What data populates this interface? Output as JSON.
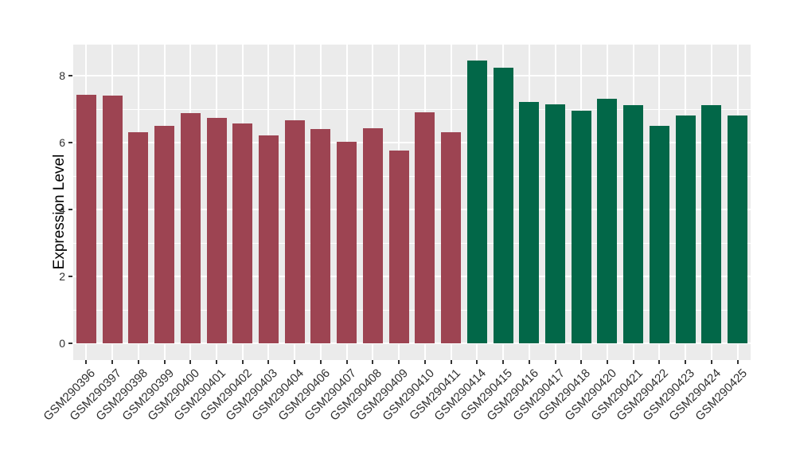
{
  "chart_data": {
    "type": "bar",
    "title": "",
    "xlabel": "",
    "ylabel": "Expression Level",
    "ylim": [
      0,
      8.9
    ],
    "yticks": [
      0,
      2,
      4,
      6,
      8
    ],
    "minor_yticks": [
      1,
      3,
      5,
      7
    ],
    "grid": "white major/minor horizontal lines and vertical lines at category centers on gray panel (ggplot style), drawn behind bars",
    "legend_position": "none",
    "categories": [
      "GSM290396",
      "GSM290397",
      "GSM290398",
      "GSM290399",
      "GSM290400",
      "GSM290401",
      "GSM290402",
      "GSM290403",
      "GSM290404",
      "GSM290406",
      "GSM290407",
      "GSM290408",
      "GSM290409",
      "GSM290410",
      "GSM290411",
      "GSM290414",
      "GSM290415",
      "GSM290416",
      "GSM290417",
      "GSM290418",
      "GSM290420",
      "GSM290421",
      "GSM290422",
      "GSM290423",
      "GSM290424",
      "GSM290425"
    ],
    "values": [
      7.42,
      7.4,
      6.31,
      6.49,
      6.89,
      6.74,
      6.57,
      6.22,
      6.66,
      6.41,
      6.03,
      6.43,
      5.77,
      6.91,
      6.31,
      8.45,
      8.25,
      7.22,
      7.14,
      6.96,
      7.32,
      7.11,
      6.5,
      6.82,
      7.12,
      6.81
    ],
    "color_groups": [
      {
        "color": "#9D4452",
        "count": 15
      },
      {
        "color": "#026748",
        "count": 11
      }
    ]
  },
  "colors": {
    "background": "#FFFFFF",
    "panel_bg": "#EBEBEB",
    "grid": "#FFFFFF",
    "axis_text": "#303030",
    "tick_mark": "#333333",
    "bar_red": "#9D4452",
    "bar_green": "#026748"
  }
}
